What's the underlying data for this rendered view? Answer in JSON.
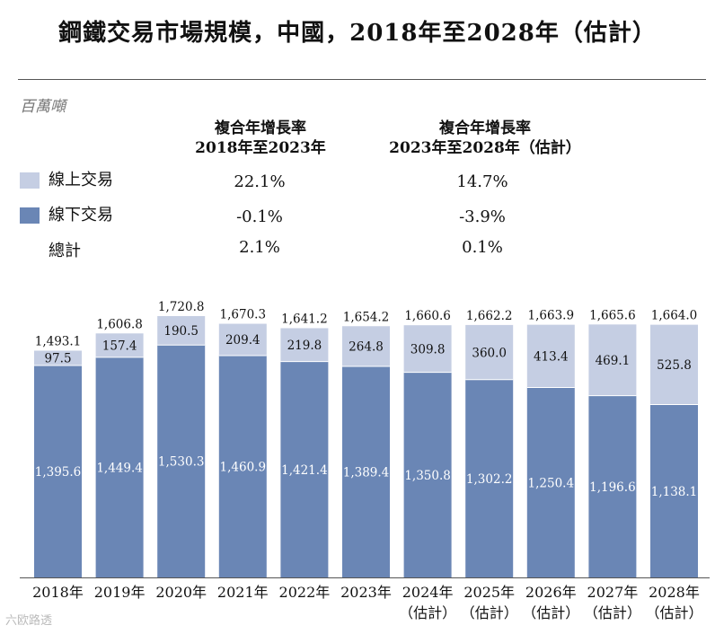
{
  "title": "鋼鐵交易市場規模，中國，2018年至2028年（估計）",
  "unit": "百萬噸",
  "cagr_table": {
    "header_1_line1": "複合年增長率",
    "header_1_line2": "2018年至2023年",
    "header_2_line1": "複合年增長率",
    "header_2_line2": "2023年至2028年（估計）",
    "rows": [
      {
        "label": "線上交易",
        "period_1": "22.1%",
        "period_2": "14.7%"
      },
      {
        "label": "線下交易",
        "period_1": "-0.1%",
        "period_2": "-3.9%"
      },
      {
        "label": "總計",
        "period_1": "2.1%",
        "period_2": "0.1%"
      }
    ]
  },
  "colors": {
    "online": "#c5cee3",
    "offline": "#6a86b5",
    "axis": "#555555"
  },
  "watermark": "六欧路透",
  "chart_data": {
    "type": "bar",
    "stacked": true,
    "title": "鋼鐵交易市場規模，中國，2018年至2028年（估計）",
    "ylabel": "百萬噸",
    "ylim": [
      0,
      1720.8
    ],
    "categories": [
      [
        "2018年"
      ],
      [
        "2019年"
      ],
      [
        "2020年"
      ],
      [
        "2021年"
      ],
      [
        "2022年"
      ],
      [
        "2023年"
      ],
      [
        "2024年",
        "（估計）"
      ],
      [
        "2025年",
        "（估計）"
      ],
      [
        "2026年",
        "（估計）"
      ],
      [
        "2027年",
        "（估計）"
      ],
      [
        "2028年",
        "（估計）"
      ]
    ],
    "series": [
      {
        "name": "線下交易",
        "values": [
          1395.6,
          1449.4,
          1530.3,
          1460.9,
          1421.4,
          1389.4,
          1350.8,
          1302.2,
          1250.4,
          1196.6,
          1138.1
        ]
      },
      {
        "name": "線上交易",
        "values": [
          97.5,
          157.4,
          190.5,
          209.4,
          219.8,
          264.8,
          309.8,
          360.0,
          413.4,
          469.1,
          525.8
        ]
      }
    ],
    "totals": [
      1493.1,
      1606.8,
      1720.8,
      1670.3,
      1641.2,
      1654.2,
      1660.6,
      1662.2,
      1663.9,
      1665.6,
      1664.0
    ],
    "value_labels": {
      "offline": [
        "1,395.6",
        "1,449.4",
        "1,530.3",
        "1,460.9",
        "1,421.4",
        "1,389.4",
        "1,350.8",
        "1,302.2",
        "1,250.4",
        "1,196.6",
        "1,138.1"
      ],
      "online": [
        "97.5",
        "157.4",
        "190.5",
        "209.4",
        "219.8",
        "264.8",
        "309.8",
        "360.0",
        "413.4",
        "469.1",
        "525.8"
      ],
      "totals": [
        "1,493.1",
        "1,606.8",
        "1,720.8",
        "1,670.3",
        "1,641.2",
        "1,654.2",
        "1,660.6",
        "1,662.2",
        "1,663.9",
        "1,665.6",
        "1,664.0"
      ]
    },
    "grid": false,
    "legend": "top-left"
  }
}
